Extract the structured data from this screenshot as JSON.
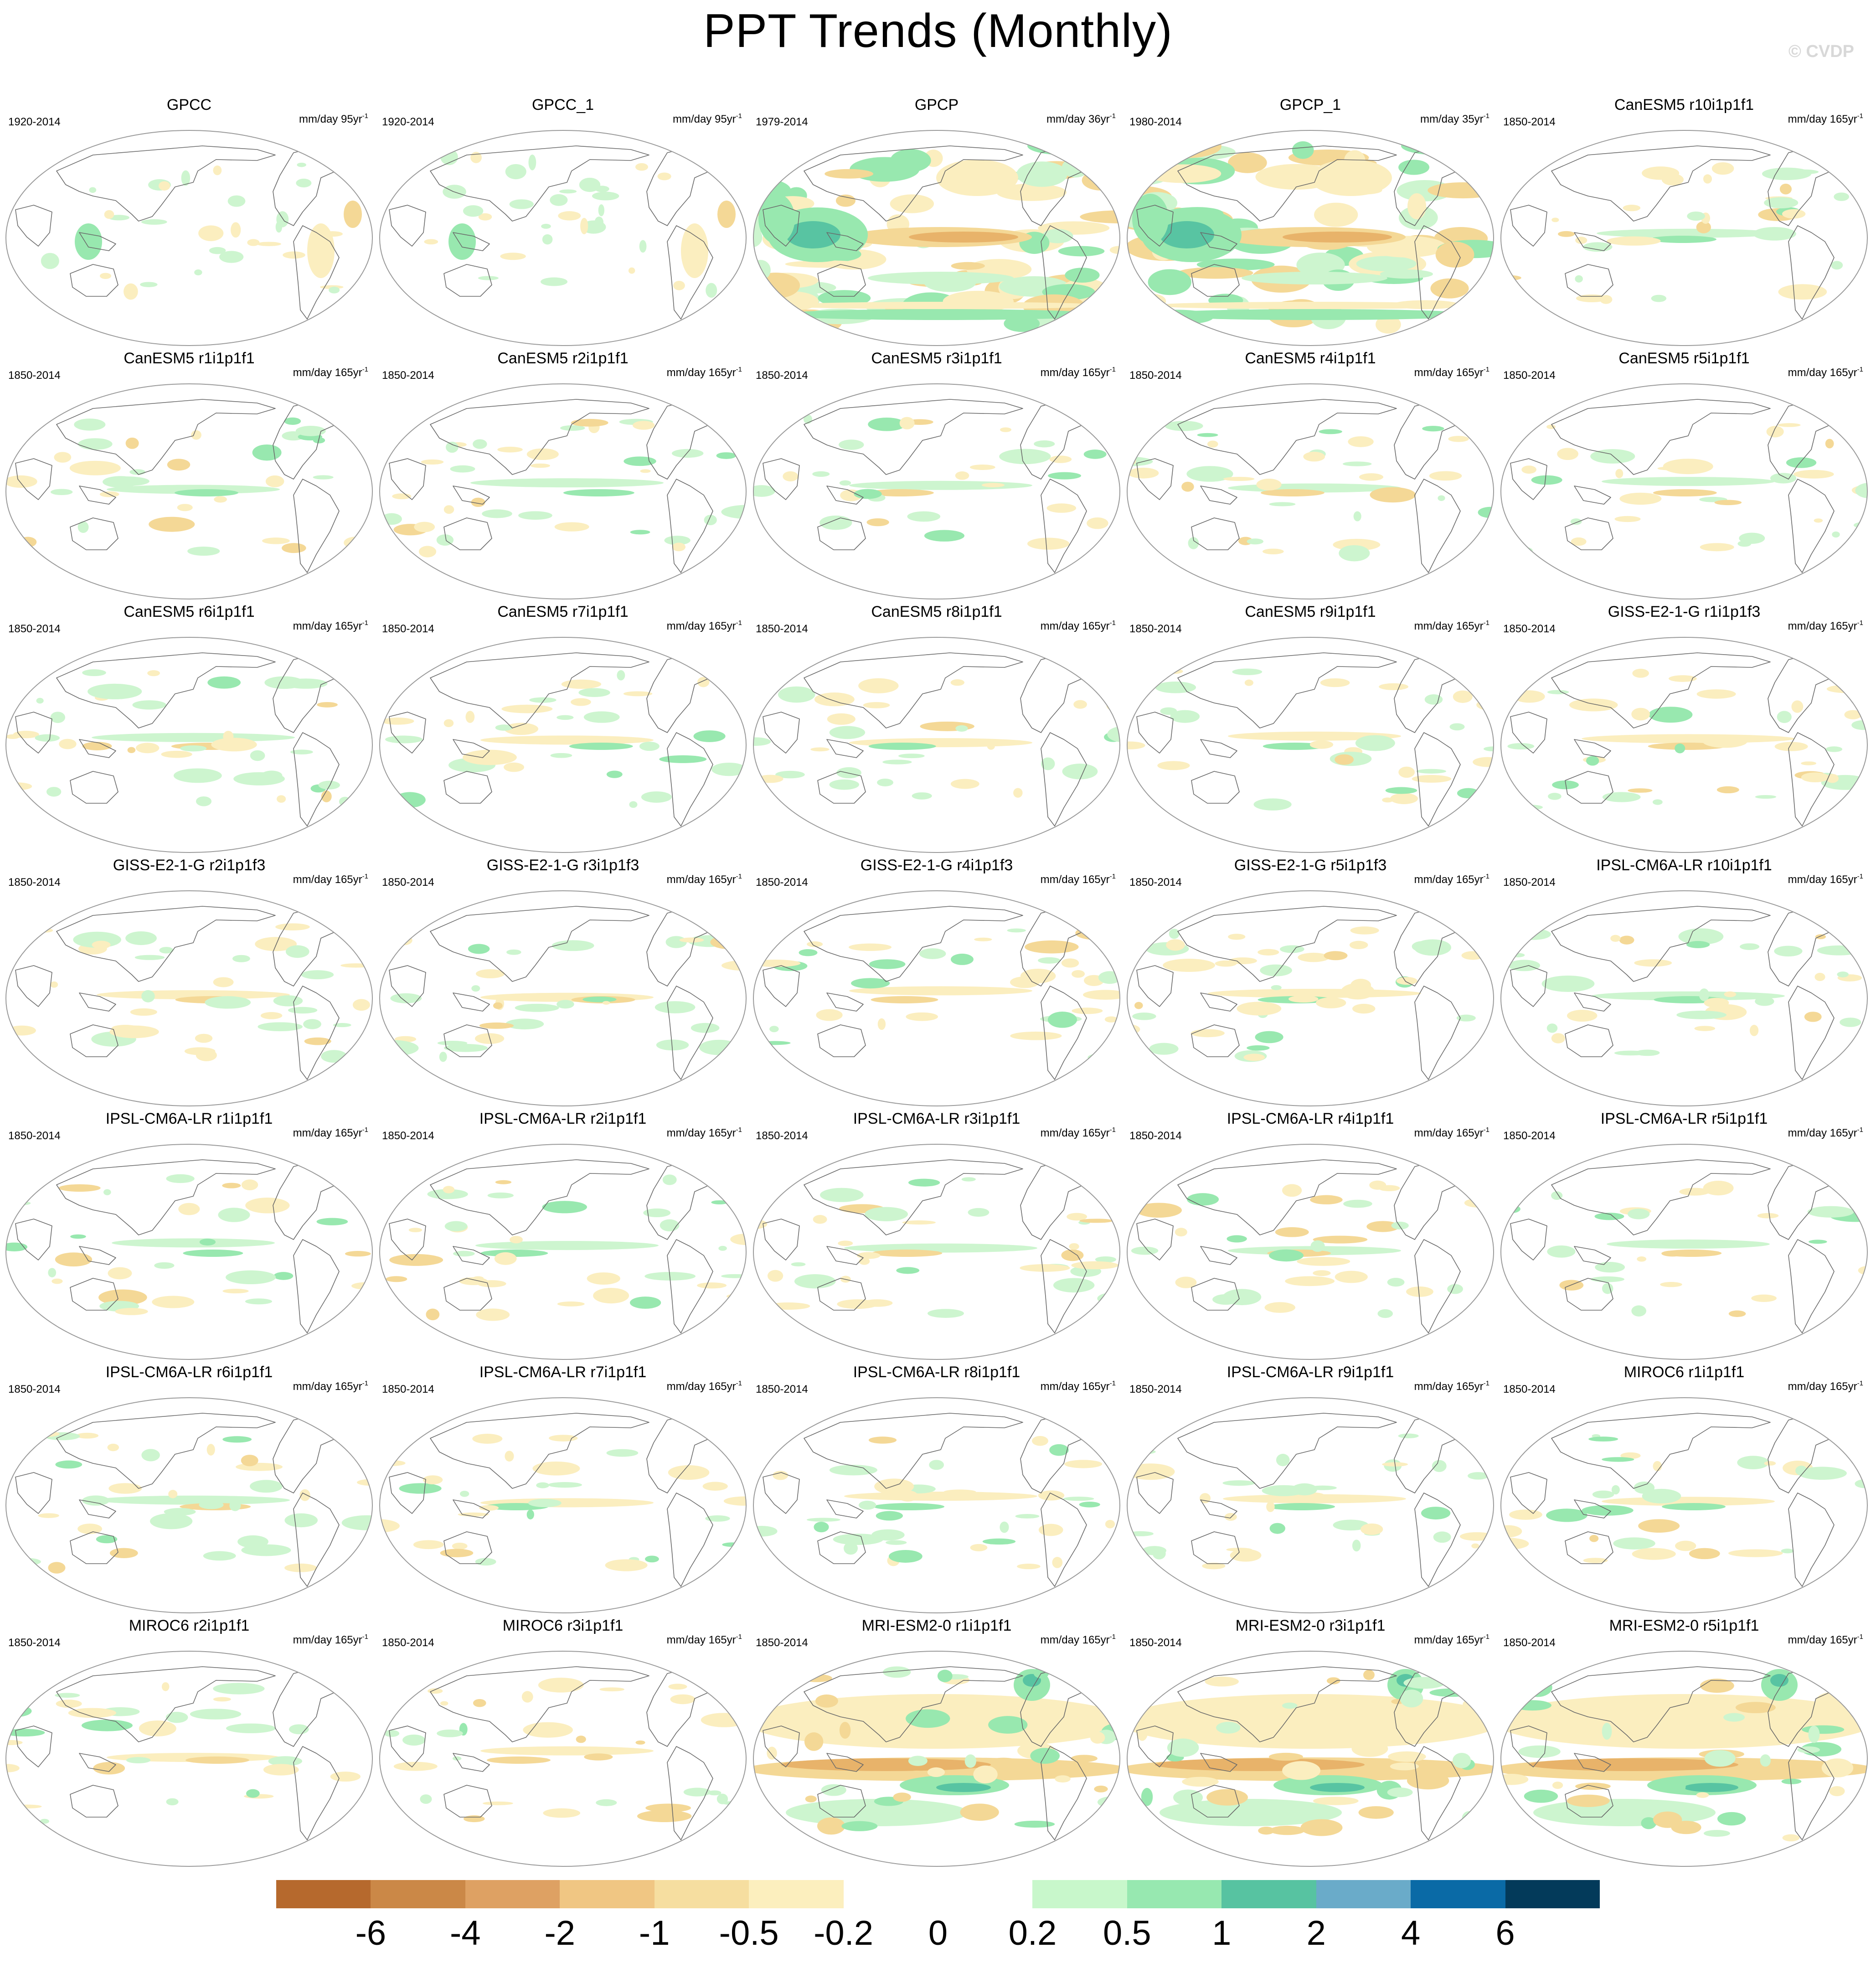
{
  "figure": {
    "title": "PPT Trends (Monthly)",
    "watermark": "© CVDP"
  },
  "colors": {
    "dry_light": "#fbeebf",
    "dry_mid": "#f4d896",
    "dry_dark": "#e8b36a",
    "dry_darker": "#d4924e",
    "wet_light": "#cdf5cf",
    "wet_mid": "#98e8af",
    "wet_dark": "#58c4a2",
    "coast": "#6a6a6a",
    "outline": "#9a9a9a"
  },
  "panels": [
    {
      "title": "GPCC",
      "years": "1920-2014",
      "units": "mm/day 95yr",
      "exp": "-1",
      "style": "obs_land",
      "intensity": 0.55
    },
    {
      "title": "GPCC_1",
      "years": "1920-2014",
      "units": "mm/day 95yr",
      "exp": "-1",
      "style": "obs_land",
      "intensity": 0.55
    },
    {
      "title": "GPCP",
      "years": "1979-2014",
      "units": "mm/day 36yr",
      "exp": "-1",
      "style": "obs_full",
      "intensity": 1.0
    },
    {
      "title": "GPCP_1",
      "years": "1980-2014",
      "units": "mm/day 35yr",
      "exp": "-1",
      "style": "obs_full",
      "intensity": 1.0
    },
    {
      "title": "CanESM5 r10i1p1f1",
      "years": "1850-2014",
      "units": "mm/day 165yr",
      "exp": "-1",
      "style": "model",
      "intensity": 0.55
    },
    {
      "title": "CanESM5 r1i1p1f1",
      "years": "1850-2014",
      "units": "mm/day 165yr",
      "exp": "-1",
      "style": "model",
      "intensity": 0.5
    },
    {
      "title": "CanESM5 r2i1p1f1",
      "years": "1850-2014",
      "units": "mm/day 165yr",
      "exp": "-1",
      "style": "model",
      "intensity": 0.6
    },
    {
      "title": "CanESM5 r3i1p1f1",
      "years": "1850-2014",
      "units": "mm/day 165yr",
      "exp": "-1",
      "style": "model",
      "intensity": 0.55
    },
    {
      "title": "CanESM5 r4i1p1f1",
      "years": "1850-2014",
      "units": "mm/day 165yr",
      "exp": "-1",
      "style": "model",
      "intensity": 0.5
    },
    {
      "title": "CanESM5 r5i1p1f1",
      "years": "1850-2014",
      "units": "mm/day 165yr",
      "exp": "-1",
      "style": "model",
      "intensity": 0.5
    },
    {
      "title": "CanESM5 r6i1p1f1",
      "years": "1850-2014",
      "units": "mm/day 165yr",
      "exp": "-1",
      "style": "model",
      "intensity": 0.65
    },
    {
      "title": "CanESM5 r7i1p1f1",
      "years": "1850-2014",
      "units": "mm/day 165yr",
      "exp": "-1",
      "style": "model",
      "intensity": 0.5
    },
    {
      "title": "CanESM5 r8i1p1f1",
      "years": "1850-2014",
      "units": "mm/day 165yr",
      "exp": "-1",
      "style": "model",
      "intensity": 0.55
    },
    {
      "title": "CanESM5 r9i1p1f1",
      "years": "1850-2014",
      "units": "mm/day 165yr",
      "exp": "-1",
      "style": "model",
      "intensity": 0.5
    },
    {
      "title": "GISS-E2-1-G r1i1p1f3",
      "years": "1850-2014",
      "units": "mm/day 165yr",
      "exp": "-1",
      "style": "model",
      "intensity": 0.7
    },
    {
      "title": "GISS-E2-1-G r2i1p1f3",
      "years": "1850-2014",
      "units": "mm/day 165yr",
      "exp": "-1",
      "style": "model",
      "intensity": 0.6
    },
    {
      "title": "GISS-E2-1-G r3i1p1f3",
      "years": "1850-2014",
      "units": "mm/day 165yr",
      "exp": "-1",
      "style": "model",
      "intensity": 0.5
    },
    {
      "title": "GISS-E2-1-G r4i1p1f3",
      "years": "1850-2014",
      "units": "mm/day 165yr",
      "exp": "-1",
      "style": "model",
      "intensity": 0.55
    },
    {
      "title": "GISS-E2-1-G r5i1p1f3",
      "years": "1850-2014",
      "units": "mm/day 165yr",
      "exp": "-1",
      "style": "model",
      "intensity": 0.7
    },
    {
      "title": "IPSL-CM6A-LR r10i1p1f1",
      "years": "1850-2014",
      "units": "mm/day 165yr",
      "exp": "-1",
      "style": "model",
      "intensity": 0.6
    },
    {
      "title": "IPSL-CM6A-LR r1i1p1f1",
      "years": "1850-2014",
      "units": "mm/day 165yr",
      "exp": "-1",
      "style": "model",
      "intensity": 0.45
    },
    {
      "title": "IPSL-CM6A-LR r2i1p1f1",
      "years": "1850-2014",
      "units": "mm/day 165yr",
      "exp": "-1",
      "style": "model",
      "intensity": 0.55
    },
    {
      "title": "IPSL-CM6A-LR r3i1p1f1",
      "years": "1850-2014",
      "units": "mm/day 165yr",
      "exp": "-1",
      "style": "model",
      "intensity": 0.6
    },
    {
      "title": "IPSL-CM6A-LR r4i1p1f1",
      "years": "1850-2014",
      "units": "mm/day 165yr",
      "exp": "-1",
      "style": "model",
      "intensity": 0.5
    },
    {
      "title": "IPSL-CM6A-LR r5i1p1f1",
      "years": "1850-2014",
      "units": "mm/day 165yr",
      "exp": "-1",
      "style": "model",
      "intensity": 0.45
    },
    {
      "title": "IPSL-CM6A-LR r6i1p1f1",
      "years": "1850-2014",
      "units": "mm/day 165yr",
      "exp": "-1",
      "style": "model",
      "intensity": 0.6
    },
    {
      "title": "IPSL-CM6A-LR r7i1p1f1",
      "years": "1850-2014",
      "units": "mm/day 165yr",
      "exp": "-1",
      "style": "model",
      "intensity": 0.5
    },
    {
      "title": "IPSL-CM6A-LR r8i1p1f1",
      "years": "1850-2014",
      "units": "mm/day 165yr",
      "exp": "-1",
      "style": "model",
      "intensity": 0.6
    },
    {
      "title": "IPSL-CM6A-LR r9i1p1f1",
      "years": "1850-2014",
      "units": "mm/day 165yr",
      "exp": "-1",
      "style": "model",
      "intensity": 0.55
    },
    {
      "title": "MIROC6 r1i1p1f1",
      "years": "1850-2014",
      "units": "mm/day 165yr",
      "exp": "-1",
      "style": "model",
      "intensity": 0.5
    },
    {
      "title": "MIROC6 r2i1p1f1",
      "years": "1850-2014",
      "units": "mm/day 165yr",
      "exp": "-1",
      "style": "model",
      "intensity": 0.5
    },
    {
      "title": "MIROC6 r3i1p1f1",
      "years": "1850-2014",
      "units": "mm/day 165yr",
      "exp": "-1",
      "style": "model",
      "intensity": 0.5
    },
    {
      "title": "MRI-ESM2-0 r1i1p1f1",
      "years": "1850-2014",
      "units": "mm/day 165yr",
      "exp": "-1",
      "style": "mri",
      "intensity": 0.95
    },
    {
      "title": "MRI-ESM2-0 r3i1p1f1",
      "years": "1850-2014",
      "units": "mm/day 165yr",
      "exp": "-1",
      "style": "mri",
      "intensity": 0.95
    },
    {
      "title": "MRI-ESM2-0 r5i1p1f1",
      "years": "1850-2014",
      "units": "mm/day 165yr",
      "exp": "-1",
      "style": "mri",
      "intensity": 1.0
    }
  ],
  "colorbar": {
    "colors": [
      "#b6692d",
      "#cb8847",
      "#dea163",
      "#f0c683",
      "#f6dea0",
      "#fcefbe",
      "#ffffff",
      "#ffffff",
      "#c8f7cb",
      "#97e8b0",
      "#57c3a1",
      "#6aabc9",
      "#0a6aa6",
      "#033a5a"
    ],
    "labels": [
      "-6",
      "-4",
      "-2",
      "-1",
      "-0.5",
      "-0.2",
      "0",
      "0.2",
      "0.5",
      "1",
      "2",
      "4",
      "6"
    ]
  }
}
